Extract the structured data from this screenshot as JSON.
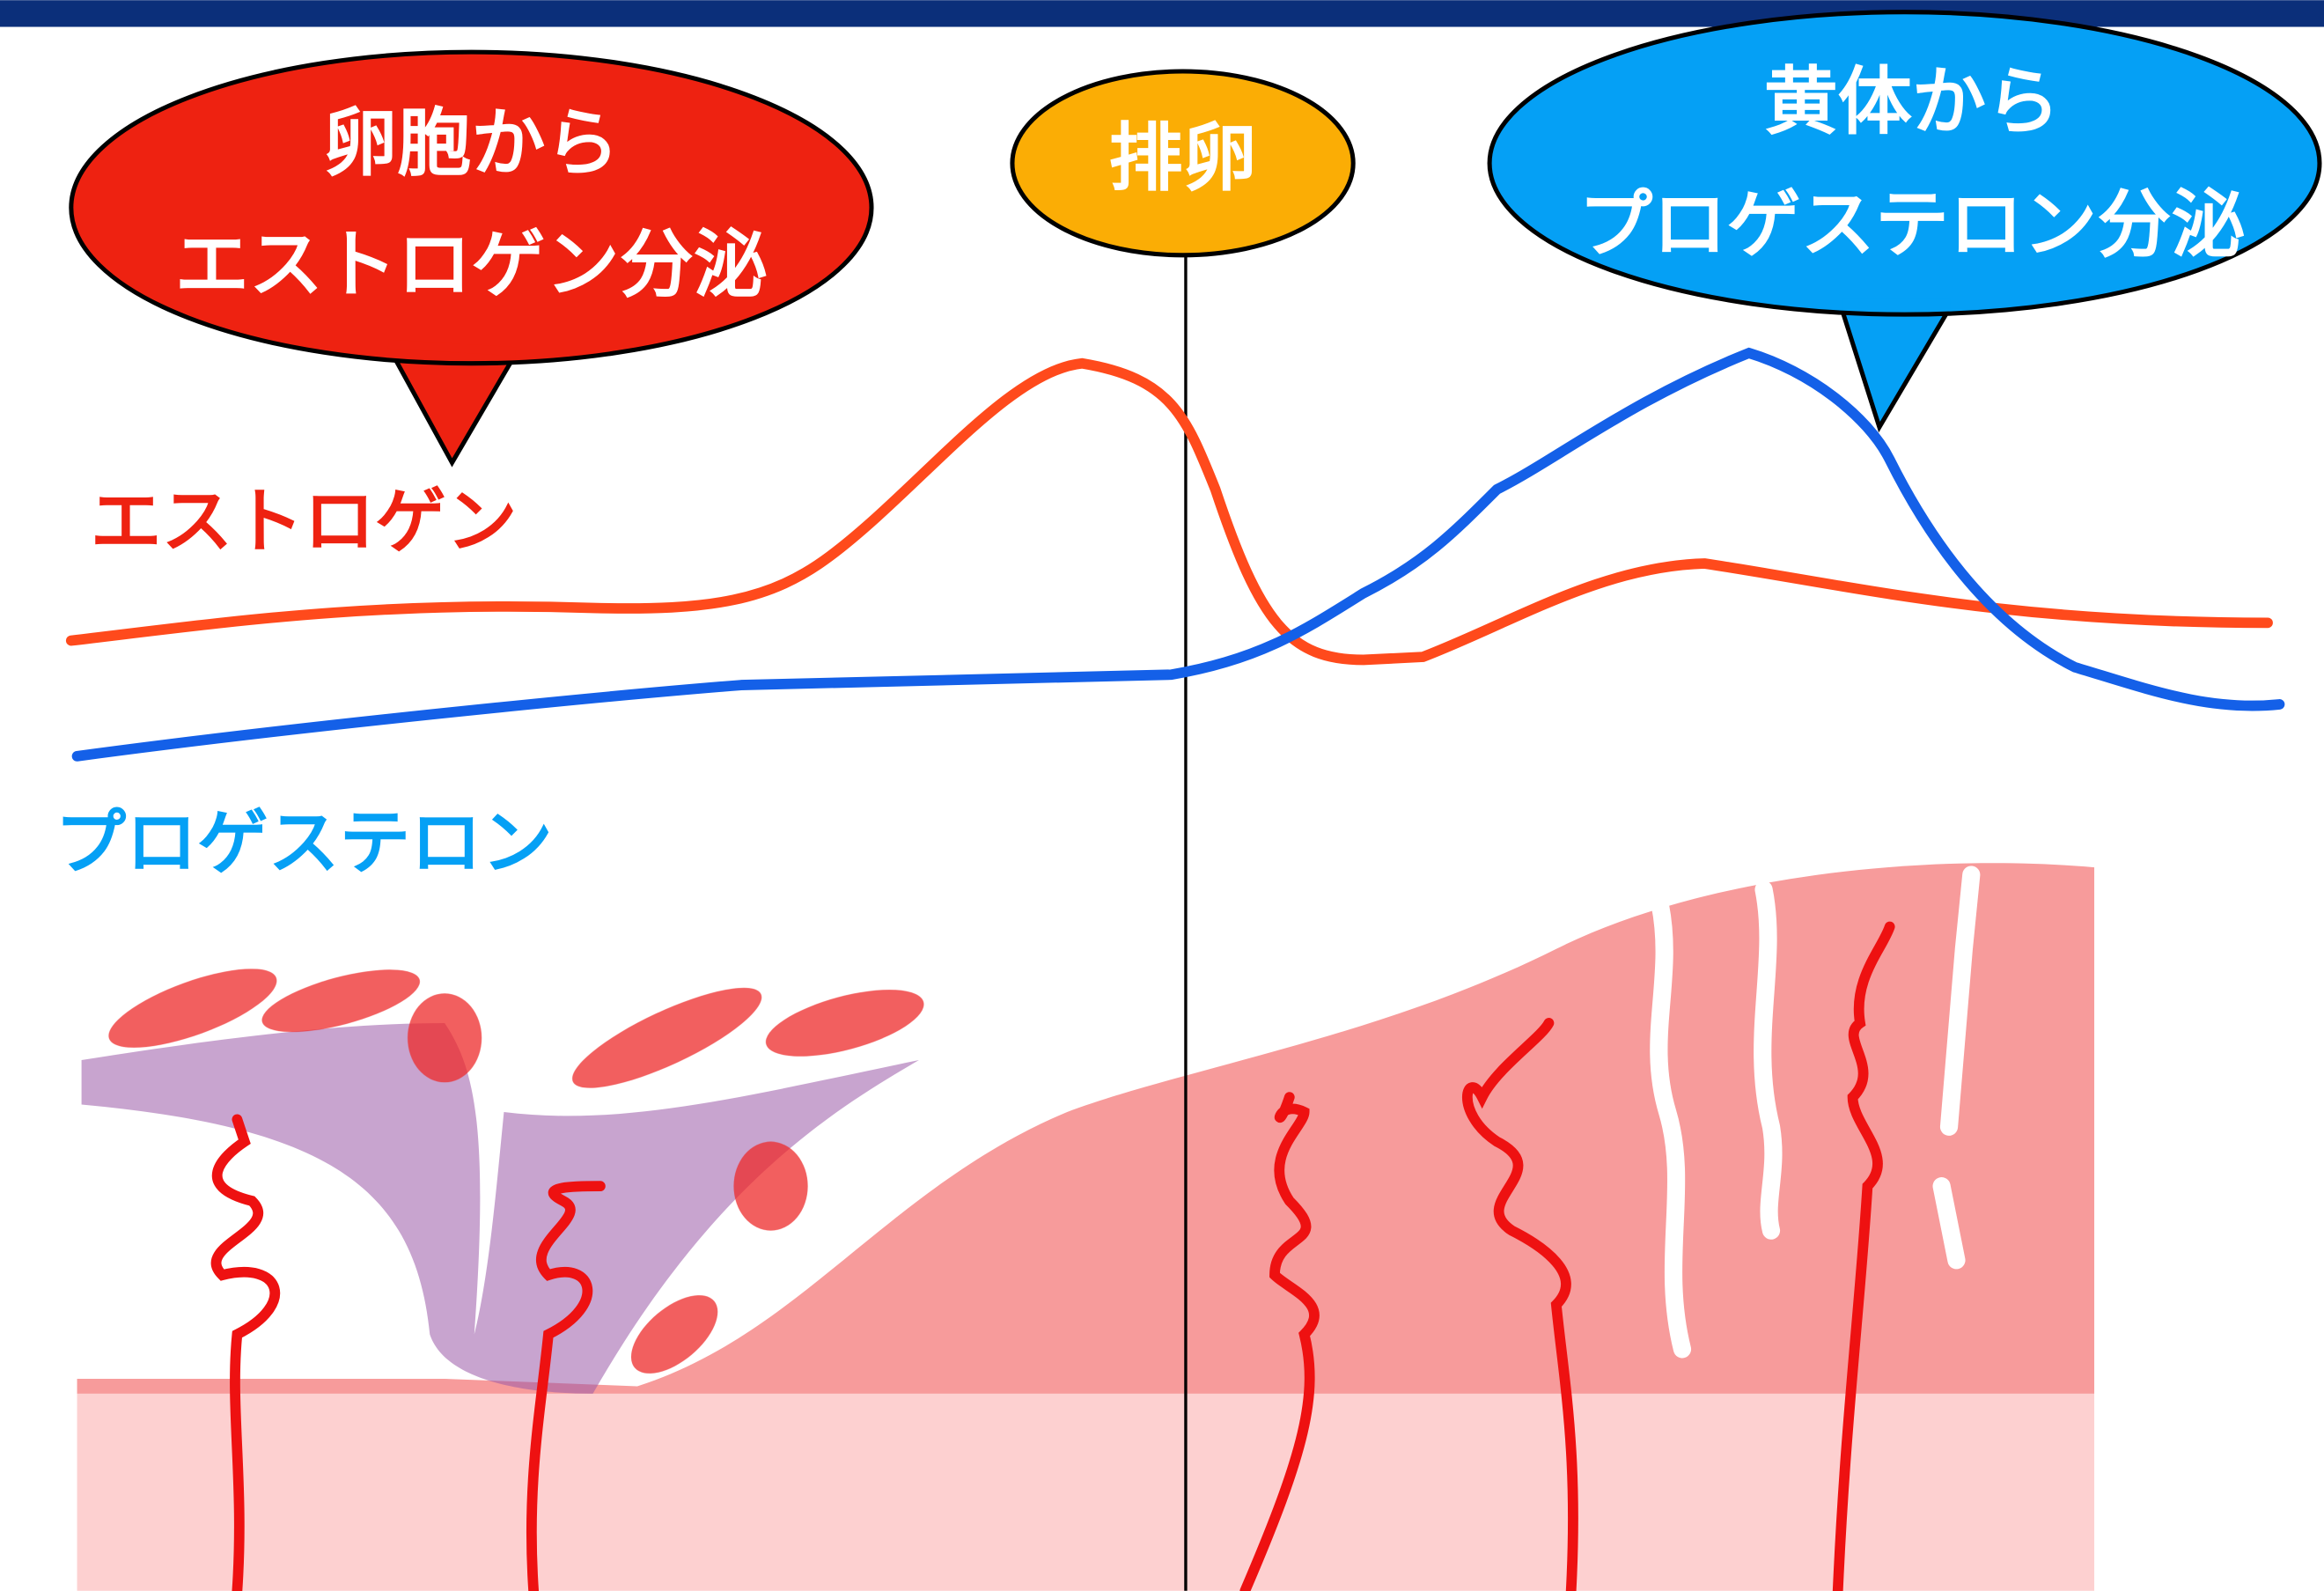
{
  "callouts": [
    {
      "lines": [
        "卵胞から",
        "エストロゲン分泌"
      ]
    },
    {
      "label": "排卵"
    },
    {
      "lines": [
        "黄体から",
        "プロゲステロン分泌"
      ]
    }
  ],
  "labels": {
    "estrogen": "エストロゲン",
    "progesterone": "プロゲステロン"
  }
}
